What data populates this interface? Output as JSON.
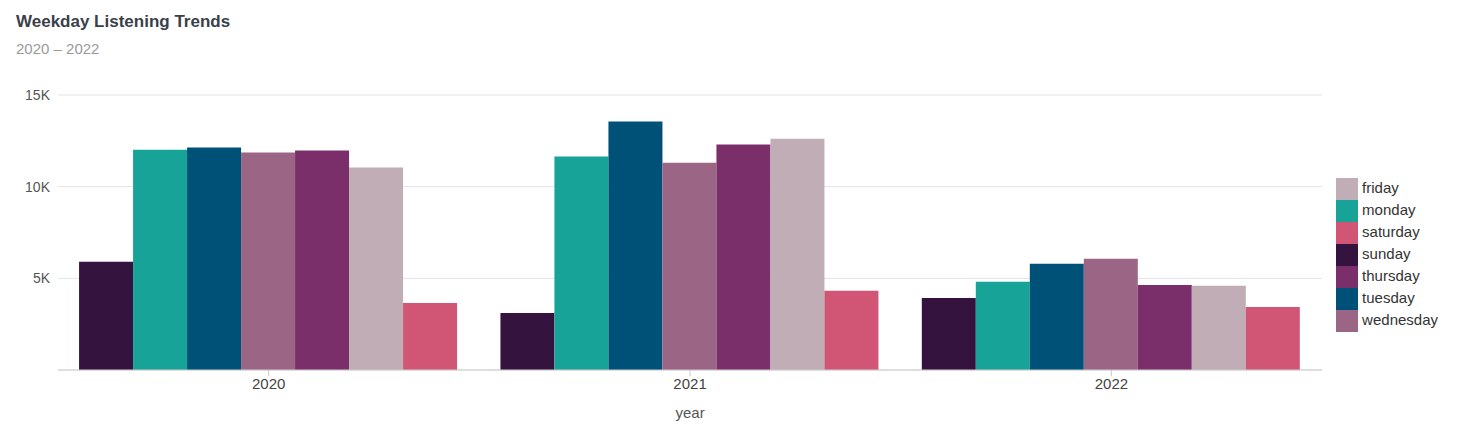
{
  "chart_data": {
    "type": "bar",
    "title": "Weekday Listening Trends",
    "subtitle": "2020 – 2022",
    "x_label": "year",
    "categories": [
      "2020",
      "2021",
      "2022"
    ],
    "series": [
      {
        "name": "sunday",
        "color": "#35133f",
        "values": [
          5900,
          3110,
          3930
        ]
      },
      {
        "name": "monday",
        "color": "#17a398",
        "values": [
          12020,
          11640,
          4810
        ]
      },
      {
        "name": "tuesday",
        "color": "#005178",
        "values": [
          12130,
          13550,
          5790
        ]
      },
      {
        "name": "wednesday",
        "color": "#9b6585",
        "values": [
          11860,
          11310,
          6070
        ]
      },
      {
        "name": "thursday",
        "color": "#7a2f6b",
        "values": [
          11970,
          12300,
          4640
        ]
      },
      {
        "name": "friday",
        "color": "#c0adb5",
        "values": [
          11040,
          12620,
          4590
        ]
      },
      {
        "name": "saturday",
        "color": "#d15574",
        "values": [
          3660,
          4320,
          3440
        ]
      }
    ],
    "ylim": [
      0,
      15000
    ],
    "yticks": [
      {
        "value": 5000,
        "label": "5K"
      },
      {
        "value": 10000,
        "label": "10K"
      },
      {
        "value": 15000,
        "label": "15K"
      }
    ],
    "grid": true,
    "legend": "right"
  }
}
